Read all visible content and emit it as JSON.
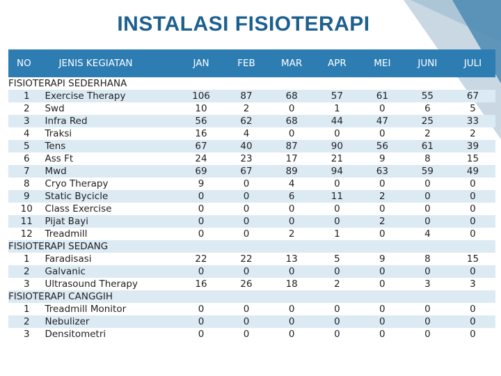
{
  "title": "INSTALASI FISIOTERAPI",
  "headers": {
    "no": "NO",
    "name": "JENIS KEGIATAN",
    "months": [
      "JAN",
      "FEB",
      "MAR",
      "APR",
      "MEI",
      "JUNI",
      "JULI"
    ]
  },
  "sections": [
    {
      "title": "FISIOTERAPI SEDERHANA",
      "rows": [
        {
          "no": "1",
          "name": "Exercise Therapy",
          "values": [
            "106",
            "87",
            "68",
            "57",
            "61",
            "55",
            "67"
          ]
        },
        {
          "no": "2",
          "name": "Swd",
          "values": [
            "10",
            "2",
            "0",
            "1",
            "0",
            "6",
            "5"
          ]
        },
        {
          "no": "3",
          "name": "Infra Red",
          "values": [
            "56",
            "62",
            "68",
            "44",
            "47",
            "25",
            "33"
          ]
        },
        {
          "no": "4",
          "name": "Traksi",
          "values": [
            "16",
            "4",
            "0",
            "0",
            "0",
            "2",
            "2"
          ]
        },
        {
          "no": "5",
          "name": "Tens",
          "values": [
            "67",
            "40",
            "87",
            "90",
            "56",
            "61",
            "39"
          ]
        },
        {
          "no": "6",
          "name": "Ass Ft",
          "values": [
            "24",
            "23",
            "17",
            "21",
            "9",
            "8",
            "15"
          ]
        },
        {
          "no": "7",
          "name": "Mwd",
          "values": [
            "69",
            "67",
            "89",
            "94",
            "63",
            "59",
            "49"
          ]
        },
        {
          "no": "8",
          "name": "Cryo Therapy",
          "values": [
            "9",
            "0",
            "4",
            "0",
            "0",
            "0",
            "0"
          ]
        },
        {
          "no": "9",
          "name": "Static Bycicle",
          "values": [
            "0",
            "0",
            "6",
            "11",
            "2",
            "0",
            "0"
          ]
        },
        {
          "no": "10",
          "name": "Class Exercise",
          "values": [
            "0",
            "0",
            "0",
            "0",
            "0",
            "0",
            "0"
          ]
        },
        {
          "no": "11",
          "name": "Pijat Bayi",
          "values": [
            "0",
            "0",
            "0",
            "0",
            "2",
            "0",
            "0"
          ]
        },
        {
          "no": "12",
          "name": "Treadmill",
          "values": [
            "0",
            "0",
            "2",
            "1",
            "0",
            "4",
            "0"
          ]
        }
      ]
    },
    {
      "title": "FISIOTERAPI SEDANG",
      "rows": [
        {
          "no": "1",
          "name": "Faradisasi",
          "values": [
            "22",
            "22",
            "13",
            "5",
            "9",
            "8",
            "15"
          ]
        },
        {
          "no": "2",
          "name": "Galvanic",
          "values": [
            "0",
            "0",
            "0",
            "0",
            "0",
            "0",
            "0"
          ]
        },
        {
          "no": "3",
          "name": "Ultrasound Therapy",
          "values": [
            "16",
            "26",
            "18",
            "2",
            "0",
            "3",
            "3"
          ]
        }
      ]
    },
    {
      "title": "FISIOTERAPI CANGGIH",
      "rows": [
        {
          "no": "1",
          "name": "Treadmill Monitor",
          "values": [
            "0",
            "0",
            "0",
            "0",
            "0",
            "0",
            "0"
          ]
        },
        {
          "no": "2",
          "name": "Nebulizer",
          "values": [
            "0",
            "0",
            "0",
            "0",
            "0",
            "0",
            "0"
          ]
        },
        {
          "no": "3",
          "name": "Densitometri",
          "values": [
            "0",
            "0",
            "0",
            "0",
            "0",
            "0",
            "0"
          ]
        }
      ]
    }
  ]
}
